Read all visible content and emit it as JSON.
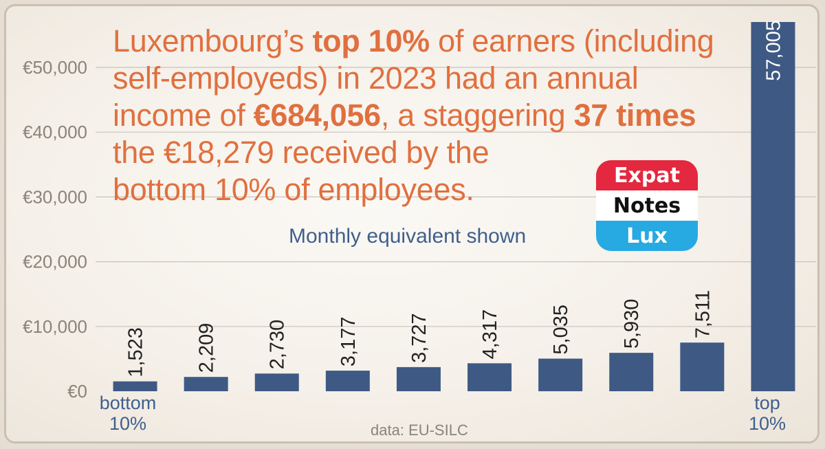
{
  "headline": {
    "line1_pre": "Luxembourg’s ",
    "line1_bold": "top 10%",
    "line1_post": " of earners (including",
    "line2": "self-employeds) in 2023 had an annual",
    "line3_pre": "income of ",
    "line3_bold1": "€684,056",
    "line3_mid": ", a staggering ",
    "line3_bold2": "37 times",
    "line4": "the €18,279 received by the",
    "line5": "bottom 10% of employees."
  },
  "subtitle": "Monthly equivalent shown",
  "source": "data: EU-SILC",
  "logo": {
    "line1": "Expat",
    "line2": "Notes",
    "line3": "Lux"
  },
  "category_labels": {
    "first_line1": "bottom",
    "first_line2": "10%",
    "last_line1": "top",
    "last_line2": "10%"
  },
  "colors": {
    "bar": "#3e5a84",
    "headline": "#e0703f",
    "grid": "#c8c3bc",
    "axis_text": "#8a8378",
    "value_text": "#222222"
  },
  "chart_data": {
    "type": "bar",
    "categories": [
      "bottom 10%",
      "",
      "",
      "",
      "",
      "",
      "",
      "",
      "",
      "top 10%"
    ],
    "values": [
      1523,
      2209,
      2730,
      3177,
      3727,
      4317,
      5035,
      5930,
      7511,
      57005
    ],
    "value_labels": [
      "1,523",
      "2,209",
      "2,730",
      "3,177",
      "3,727",
      "4,317",
      "5,035",
      "5,930",
      "7,511",
      "57,005"
    ],
    "yticks": [
      0,
      10000,
      20000,
      30000,
      40000,
      50000
    ],
    "ytick_labels": [
      "€0",
      "€10,000",
      "€20,000",
      "€30,000",
      "€40,000",
      "€50,000"
    ],
    "ylim": [
      0,
      57005
    ],
    "grid": true,
    "title": "",
    "xlabel": "",
    "ylabel": ""
  }
}
